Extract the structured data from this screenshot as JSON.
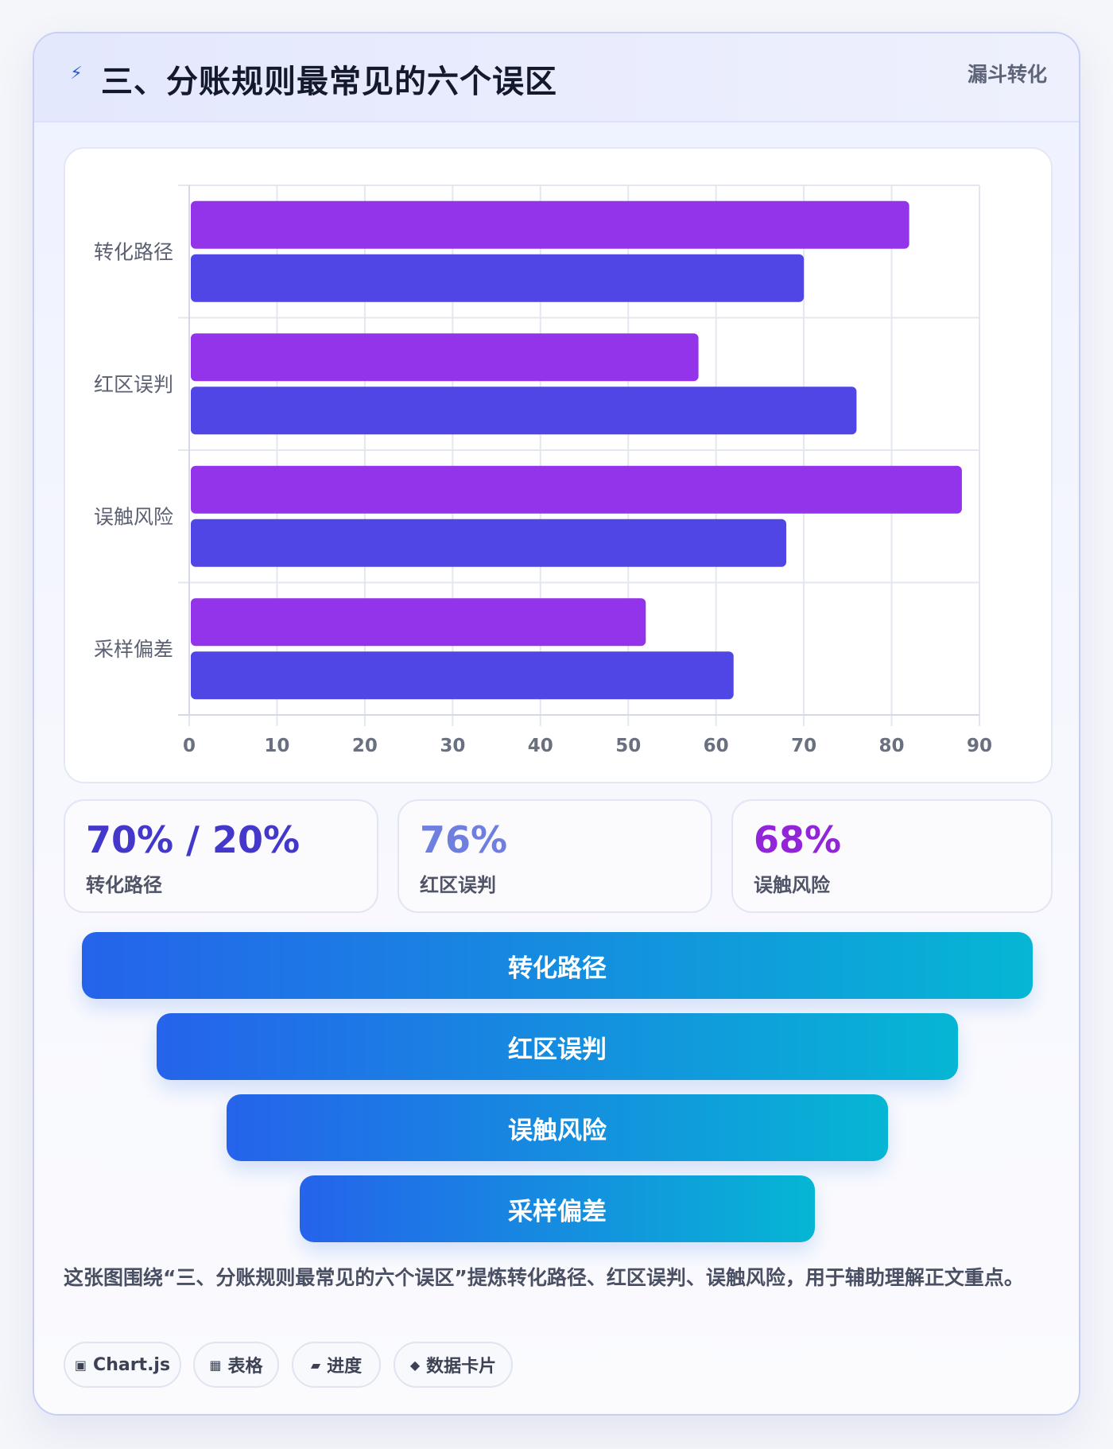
{
  "header": {
    "icon": "lightning-icon",
    "title": "三、分账规则最常见的六个误区",
    "tag": "漏斗转化"
  },
  "chart_data": {
    "type": "bar",
    "orientation": "horizontal",
    "categories": [
      "转化路径",
      "红区误判",
      "误触风险",
      "采样偏差"
    ],
    "series": [
      {
        "values": [
          82,
          58,
          88,
          52
        ],
        "color": "#9333ea"
      },
      {
        "values": [
          70,
          76,
          68,
          62
        ],
        "color": "#4f46e5"
      }
    ],
    "xlim": [
      0,
      90
    ],
    "xticks": [
      "0",
      "10",
      "20",
      "30",
      "40",
      "50",
      "60",
      "70",
      "80",
      "90"
    ],
    "grid": true
  },
  "stats": [
    {
      "value": "70% / 20%",
      "label": "转化路径",
      "color": "#4338ca"
    },
    {
      "value": "76%",
      "label": "红区误判",
      "color": "#6e7fe0"
    },
    {
      "value": "68%",
      "label": "误触风险",
      "color": "#9325d8"
    }
  ],
  "funnel": [
    "转化路径",
    "红区误判",
    "误触风险",
    "采样偏差"
  ],
  "caption": "这张图围绕“三、分账规则最常见的六个误区”提炼转化路径、红区误判、误触风险，用于辅助理解正文重点。",
  "chips": [
    {
      "icon": "▣",
      "label": "Chart.js"
    },
    {
      "icon": "▦",
      "label": "表格"
    },
    {
      "icon": "▰",
      "label": "进度"
    },
    {
      "icon": "◆",
      "label": "数据卡片"
    }
  ]
}
